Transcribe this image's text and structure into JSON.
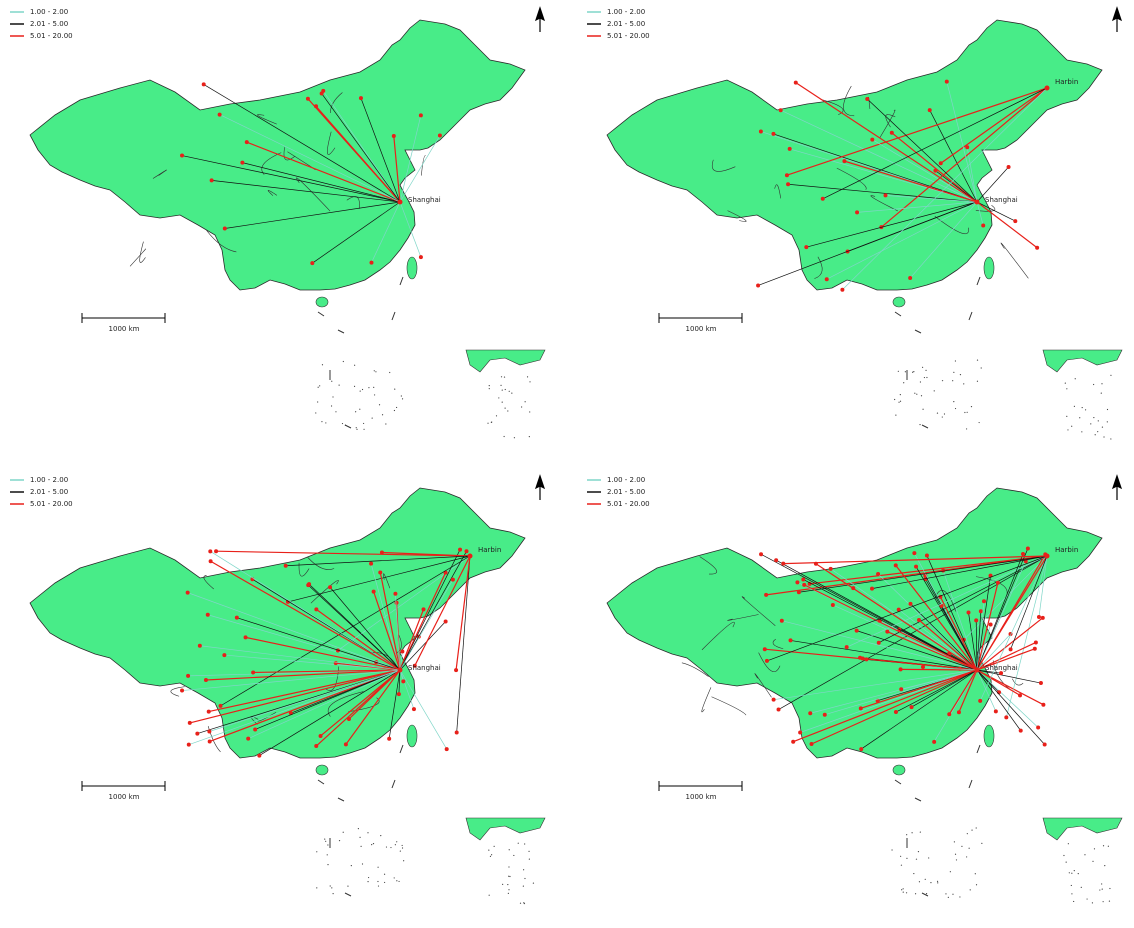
{
  "panels": [
    {
      "legend": [
        "1.00 - 2.00",
        "2.01 - 5.00",
        "5.01 - 20.00"
      ],
      "scale_label": "1000 km",
      "cities": [
        "Shanghai"
      ]
    },
    {
      "legend": [
        "1.00 - 2.00",
        "2.01 - 5.00",
        "5.01 - 20.00"
      ],
      "scale_label": "1000 km",
      "cities": [
        "Shanghai",
        "Harbin"
      ]
    },
    {
      "legend": [
        "1.00 - 2.00",
        "2.01 - 5.00",
        "5.01 - 20.00"
      ],
      "scale_label": "1000 km",
      "cities": [
        "Shanghai",
        "Harbin"
      ]
    },
    {
      "legend": [
        "1.00 - 2.00",
        "2.01 - 5.00",
        "5.01 - 20.00"
      ],
      "scale_label": "1000 km",
      "cities": [
        "Shanghai",
        "Harbin"
      ]
    }
  ]
}
